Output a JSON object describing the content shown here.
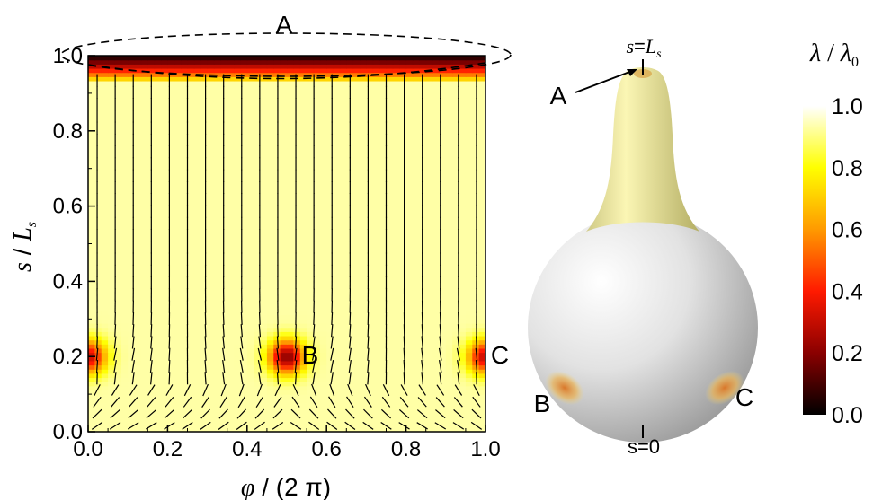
{
  "chart_data": {
    "type": "heatmap",
    "x": {
      "label_symbol": "φ",
      "label_rest": " / (2 π)",
      "range": [
        0.0,
        1.0
      ],
      "ticks": [
        "0.0",
        "0.2",
        "0.4",
        "0.6",
        "0.8",
        "1.0"
      ]
    },
    "y": {
      "label_s": "s",
      "label_sep": " / ",
      "label_L": "L",
      "label_sub": "s",
      "range": [
        0.0,
        1.0
      ],
      "ticks": [
        "0.0",
        "0.2",
        "0.4",
        "0.6",
        "0.8",
        "1.0"
      ]
    },
    "colorbar": {
      "label_l1": "λ",
      "label_sep": " / ",
      "label_l2": "λ",
      "label_sub": "0",
      "range": [
        0.0,
        1.0
      ],
      "ticks": [
        "0.0",
        "0.2",
        "0.4",
        "0.6",
        "0.8",
        "1.0"
      ],
      "colormap": [
        "#000000",
        "#8a0000",
        "#ff1a00",
        "#ff9a00",
        "#ffff00",
        "#ffffff"
      ]
    },
    "field": {
      "base_value": 0.93,
      "top_band": {
        "s_start": 0.93,
        "s_end": 1.0,
        "value_at_top": 0.02
      },
      "defects": [
        {
          "label": "B",
          "phi": 0.5,
          "s": 0.2,
          "min_value": 0.2
        },
        {
          "label": "C",
          "phi": 0.0,
          "s": 0.2,
          "min_value": 0.3
        },
        {
          "label": "C",
          "phi": 1.0,
          "s": 0.2,
          "min_value": 0.3
        }
      ],
      "director_lines": "nematic director field (dashed segments)"
    },
    "annotations": {
      "A": "A",
      "B": "B",
      "C": "C"
    }
  },
  "shape3d": {
    "top_label_s": "s",
    "top_label_eq": "=",
    "top_label_L": "L",
    "top_label_sub": "s",
    "bottom_label": "s=0",
    "points": {
      "A": "A",
      "B": "B",
      "C": "C"
    },
    "neck_color": "#e6e07a",
    "body_color": "#d9d9d9",
    "defect_color": "#e08a2a"
  }
}
